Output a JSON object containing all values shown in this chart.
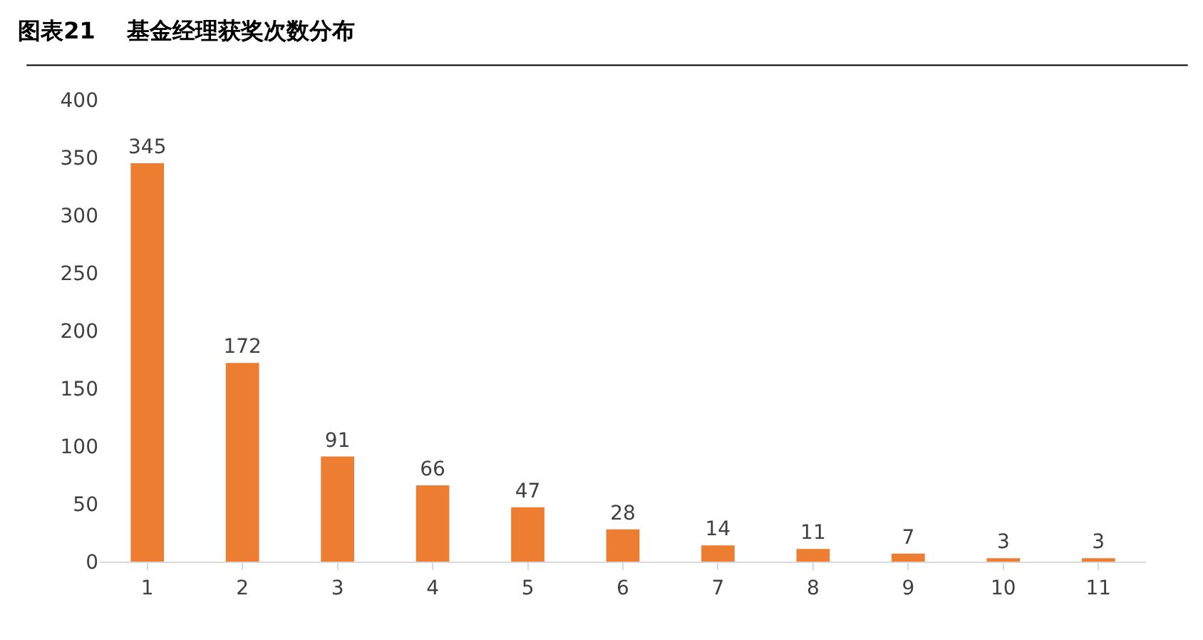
{
  "chart_data": {
    "type": "bar",
    "title": "图表21    基金经理获奖次数分布",
    "categories": [
      "1",
      "2",
      "3",
      "4",
      "5",
      "6",
      "7",
      "8",
      "9",
      "10",
      "11"
    ],
    "values": [
      345,
      172,
      91,
      66,
      47,
      28,
      14,
      11,
      7,
      3,
      3
    ],
    "color": "#ed7d31",
    "ylim": [
      0,
      400
    ],
    "yticks": [
      0,
      50,
      100,
      150,
      200,
      250,
      300,
      350,
      400
    ],
    "data_labels": true
  }
}
